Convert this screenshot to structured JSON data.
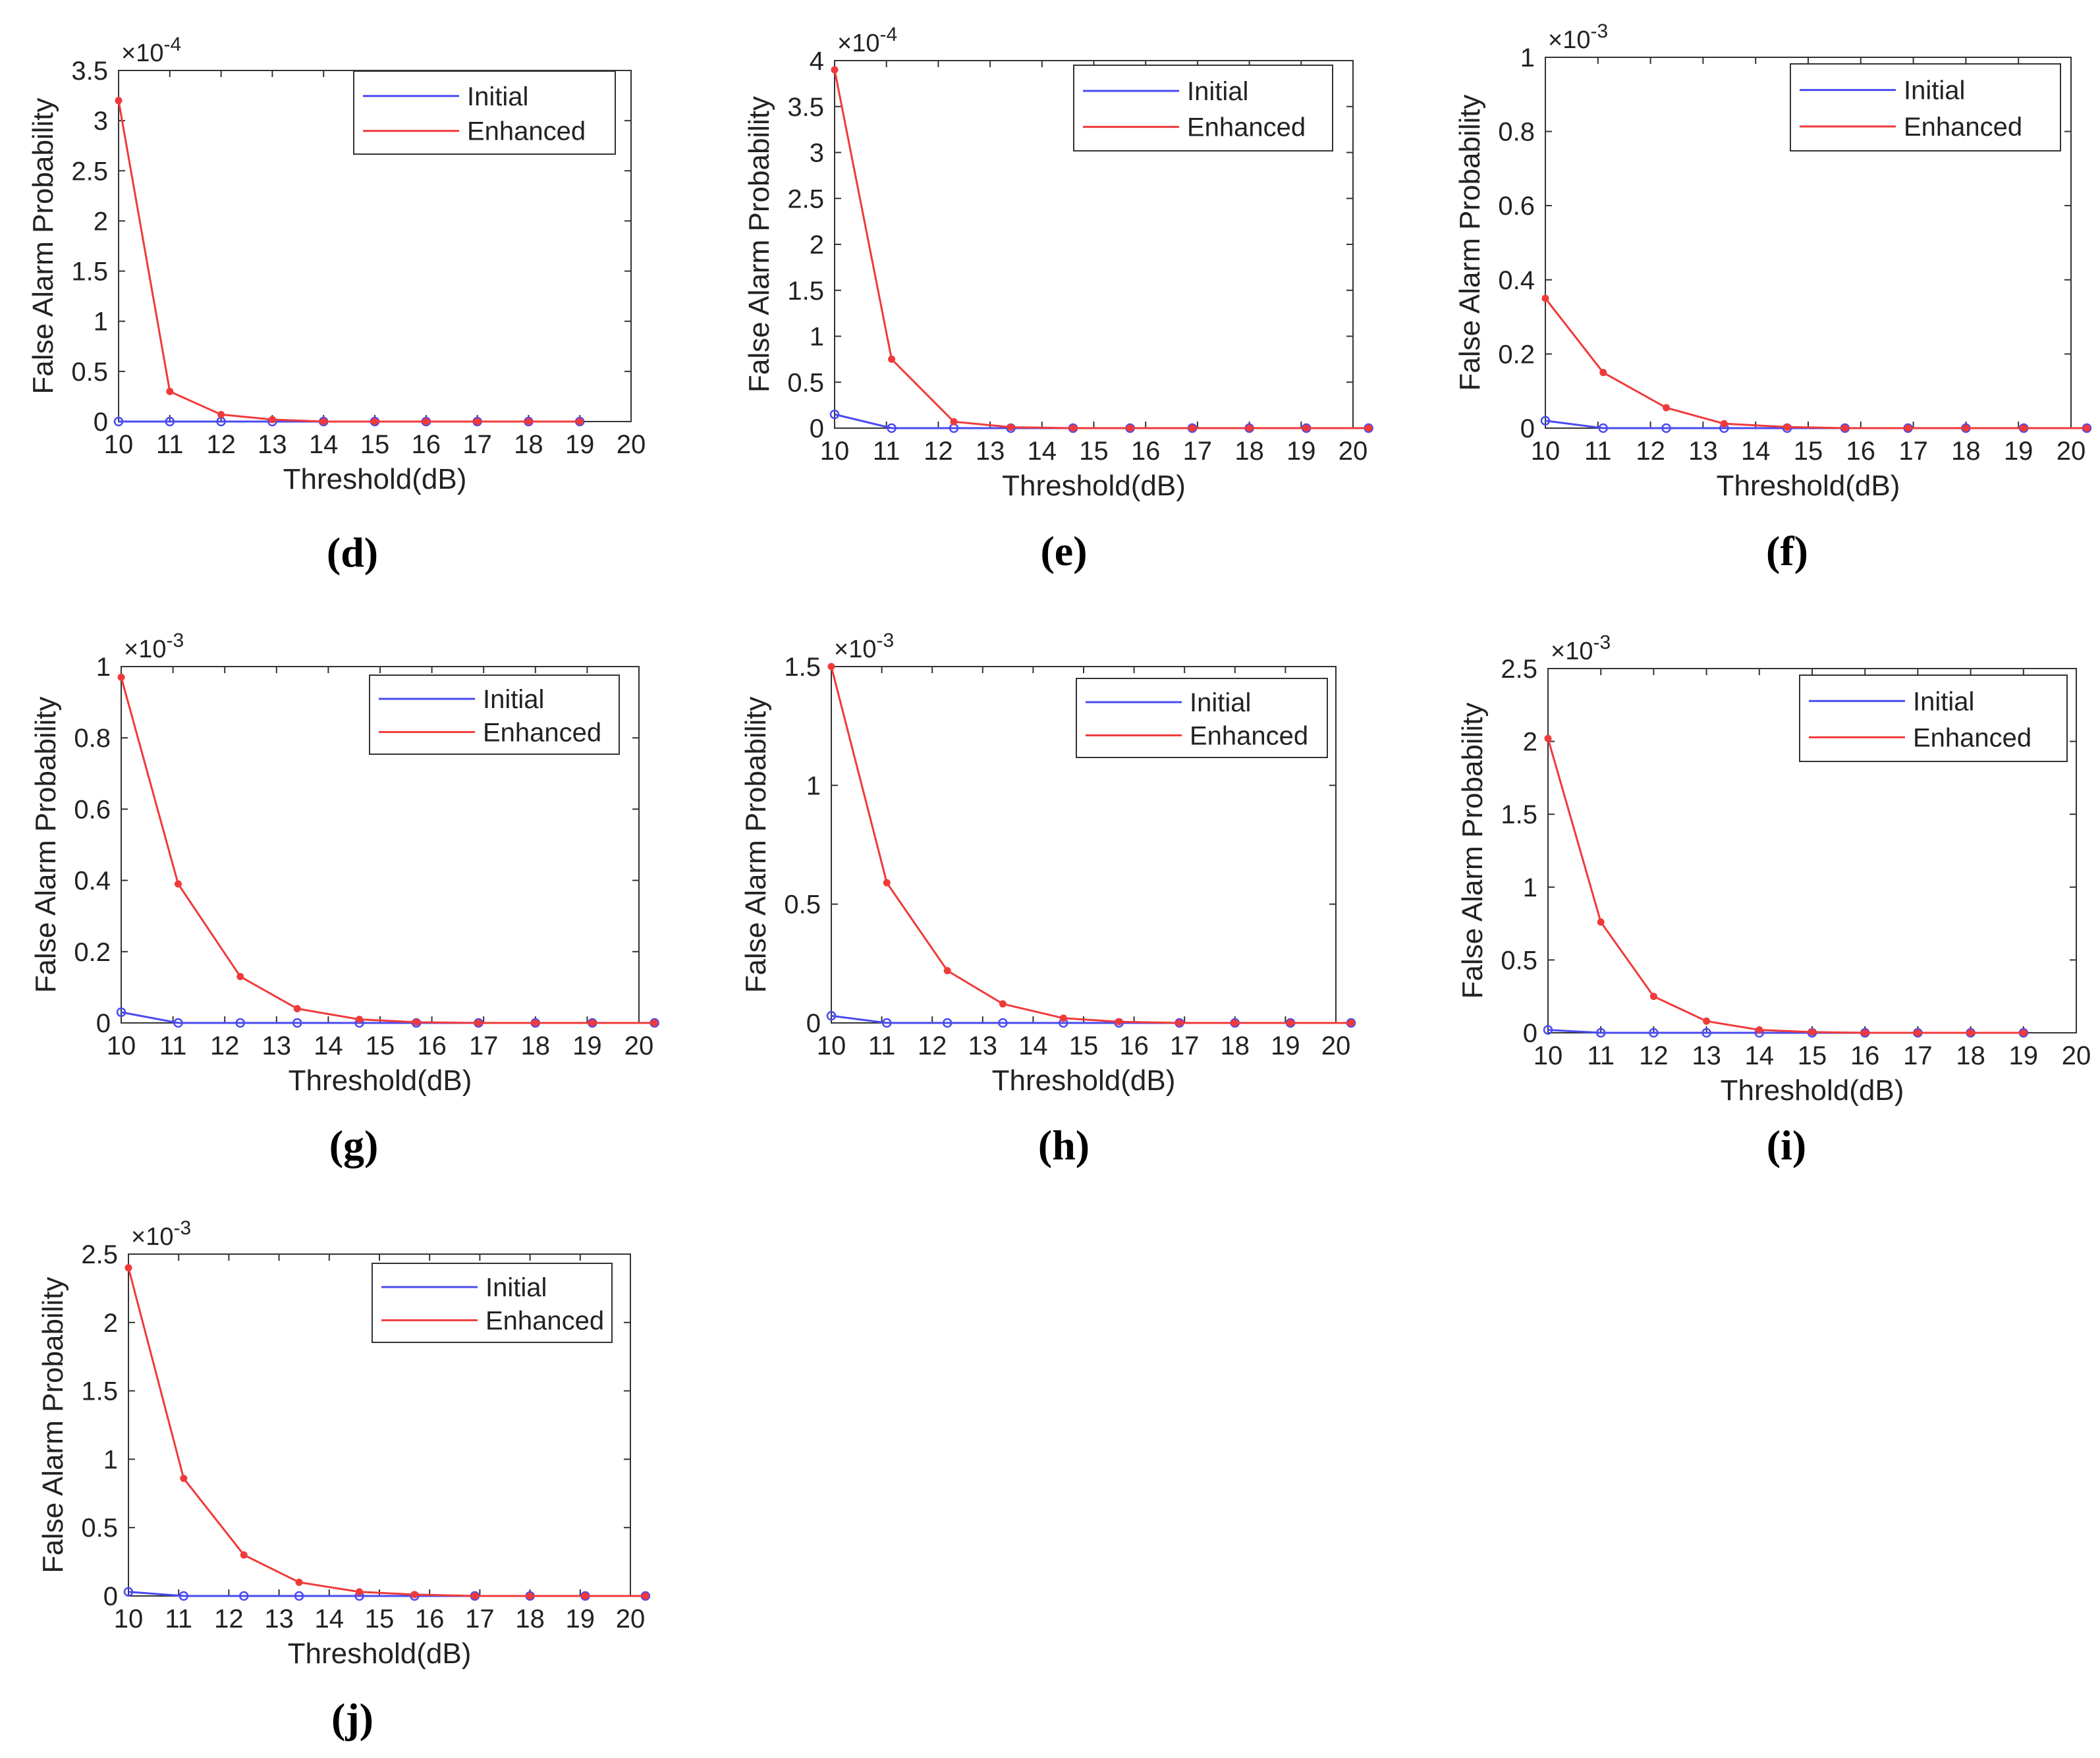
{
  "common": {
    "xlabel": "Threshold(dB)",
    "ylabel": "False Alarm Probability",
    "x_ticks": [
      10,
      11,
      12,
      13,
      14,
      15,
      16,
      17,
      18,
      19,
      20
    ],
    "legend": [
      "Initial",
      "Enhanced"
    ],
    "colors": {
      "initial": "#4a4af0",
      "enhanced": "#f03a3a"
    }
  },
  "chart_data": [
    {
      "panel": "(d)",
      "type": "line",
      "title": "",
      "xlabel": "Threshold(dB)",
      "ylabel": "False Alarm Probability",
      "exponent": "×10^-4",
      "scale_label": "×10",
      "scale_power": "-4",
      "xlim": [
        10,
        20
      ],
      "ylim": [
        0,
        3.5
      ],
      "y_ticks": [
        "0",
        "0.5",
        "1",
        "1.5",
        "2",
        "2.5",
        "3",
        "3.5"
      ],
      "legend_position": "top-right",
      "series": [
        {
          "name": "Initial",
          "x": [
            10,
            11,
            12,
            13,
            14,
            15,
            16,
            17,
            18,
            19
          ],
          "y": [
            0,
            0,
            0,
            0,
            0,
            0,
            0,
            0,
            0,
            0
          ]
        },
        {
          "name": "Enhanced",
          "x": [
            10,
            11,
            12,
            13,
            14,
            15,
            16,
            17,
            18,
            19
          ],
          "y": [
            3.2,
            0.3,
            0.07,
            0.02,
            0,
            0,
            0,
            0,
            0,
            0
          ]
        }
      ]
    },
    {
      "panel": "(e)",
      "type": "line",
      "title": "",
      "xlabel": "Threshold(dB)",
      "ylabel": "False Alarm Probability",
      "scale_label": "×10",
      "scale_power": "-4",
      "xlim": [
        10,
        20
      ],
      "ylim": [
        0,
        4
      ],
      "y_ticks": [
        "0",
        "0.5",
        "1",
        "1.5",
        "2",
        "2.5",
        "3",
        "3.5",
        "4"
      ],
      "legend_position": "top-right",
      "series": [
        {
          "name": "Initial",
          "x": [
            10,
            11.1,
            12.3,
            13.4,
            14.6,
            15.7,
            16.9,
            18,
            19.1,
            20.3
          ],
          "y": [
            0.15,
            0,
            0,
            0,
            0,
            0,
            0,
            0,
            0,
            0
          ]
        },
        {
          "name": "Enhanced",
          "x": [
            10,
            11.1,
            12.3,
            13.4,
            14.6,
            15.7,
            16.9,
            18,
            19.1,
            20.3
          ],
          "y": [
            3.9,
            0.75,
            0.07,
            0.01,
            0,
            0,
            0,
            0,
            0,
            0
          ]
        }
      ]
    },
    {
      "panel": "(f)",
      "type": "line",
      "title": "",
      "xlabel": "Threshold(dB)",
      "ylabel": "False Alarm Probability",
      "scale_label": "×10",
      "scale_power": "-3",
      "xlim": [
        10,
        20
      ],
      "ylim": [
        0,
        1
      ],
      "y_ticks": [
        "0",
        "0.2",
        "0.4",
        "0.6",
        "0.8",
        "1"
      ],
      "legend_position": "top-right",
      "series": [
        {
          "name": "Initial",
          "x": [
            10,
            11.1,
            12.3,
            13.4,
            14.6,
            15.7,
            16.9,
            18,
            19.1,
            20.3
          ],
          "y": [
            0.02,
            0,
            0,
            0,
            0,
            0,
            0,
            0,
            0,
            0
          ]
        },
        {
          "name": "Enhanced",
          "x": [
            10,
            11.1,
            12.3,
            13.4,
            14.6,
            15.7,
            16.9,
            18,
            19.1,
            20.3
          ],
          "y": [
            0.35,
            0.15,
            0.055,
            0.012,
            0.003,
            0,
            0,
            0,
            0,
            0
          ]
        }
      ]
    },
    {
      "panel": "(g)",
      "type": "line",
      "title": "",
      "xlabel": "Threshold(dB)",
      "ylabel": "False Alarm Probability",
      "scale_label": "×10",
      "scale_power": "-3",
      "xlim": [
        10,
        20
      ],
      "ylim": [
        0,
        1
      ],
      "y_ticks": [
        "0",
        "0.2",
        "0.4",
        "0.6",
        "0.8",
        "1"
      ],
      "legend_position": "top-right",
      "series": [
        {
          "name": "Initial",
          "x": [
            10,
            11.1,
            12.3,
            13.4,
            14.6,
            15.7,
            16.9,
            18,
            19.1,
            20.3
          ],
          "y": [
            0.03,
            0,
            0,
            0,
            0,
            0,
            0,
            0,
            0,
            0
          ]
        },
        {
          "name": "Enhanced",
          "x": [
            10,
            11.1,
            12.3,
            13.4,
            14.6,
            15.7,
            16.9,
            18,
            19.1,
            20.3
          ],
          "y": [
            0.97,
            0.39,
            0.13,
            0.04,
            0.01,
            0.002,
            0,
            0,
            0,
            0
          ]
        }
      ]
    },
    {
      "panel": "(h)",
      "type": "line",
      "title": "",
      "xlabel": "Threshold(dB)",
      "ylabel": "False Alarm Probability",
      "scale_label": "×10",
      "scale_power": "-3",
      "xlim": [
        10,
        20
      ],
      "ylim": [
        0,
        1.5
      ],
      "y_ticks": [
        "0",
        "0.5",
        "1",
        "1.5"
      ],
      "legend_position": "top-right",
      "series": [
        {
          "name": "Initial",
          "x": [
            10,
            11.1,
            12.3,
            13.4,
            14.6,
            15.7,
            16.9,
            18,
            19.1,
            20.3
          ],
          "y": [
            0.03,
            0,
            0,
            0,
            0,
            0,
            0,
            0,
            0,
            0
          ]
        },
        {
          "name": "Enhanced",
          "x": [
            10,
            11.1,
            12.3,
            13.4,
            14.6,
            15.7,
            16.9,
            18,
            19.1,
            20.3
          ],
          "y": [
            1.5,
            0.59,
            0.22,
            0.08,
            0.02,
            0.005,
            0,
            0,
            0,
            0
          ]
        }
      ]
    },
    {
      "panel": "(i)",
      "type": "line",
      "title": "",
      "xlabel": "Threshold(dB)",
      "ylabel": "False Alarm Probability",
      "scale_label": "×10",
      "scale_power": "-3",
      "xlim": [
        10,
        20
      ],
      "ylim": [
        0,
        2.5
      ],
      "y_ticks": [
        "0",
        "0.5",
        "1",
        "1.5",
        "2",
        "2.5"
      ],
      "legend_position": "top-right",
      "series": [
        {
          "name": "Initial",
          "x": [
            10,
            11,
            12,
            13,
            14,
            15,
            16,
            17,
            18,
            19
          ],
          "y": [
            0.02,
            0,
            0,
            0,
            0,
            0,
            0,
            0,
            0,
            0
          ]
        },
        {
          "name": "Enhanced",
          "x": [
            10,
            11,
            12,
            13,
            14,
            15,
            16,
            17,
            18,
            19
          ],
          "y": [
            2.02,
            0.76,
            0.25,
            0.08,
            0.02,
            0.005,
            0,
            0,
            0,
            0
          ]
        }
      ]
    },
    {
      "panel": "(j)",
      "type": "line",
      "title": "",
      "xlabel": "Threshold(dB)",
      "ylabel": "False Alarm Probability",
      "scale_label": "×10",
      "scale_power": "-3",
      "xlim": [
        10,
        20
      ],
      "ylim": [
        0,
        2.5
      ],
      "y_ticks": [
        "0",
        "0.5",
        "1",
        "1.5",
        "2",
        "2.5"
      ],
      "legend_position": "top-right",
      "series": [
        {
          "name": "Initial",
          "x": [
            10,
            11.1,
            12.3,
            13.4,
            14.6,
            15.7,
            16.9,
            18,
            19.1,
            20.3
          ],
          "y": [
            0.03,
            0,
            0,
            0,
            0,
            0,
            0,
            0,
            0,
            0
          ]
        },
        {
          "name": "Enhanced",
          "x": [
            10,
            11.1,
            12.3,
            13.4,
            14.6,
            15.7,
            16.9,
            18,
            19.1,
            20.3
          ],
          "y": [
            2.4,
            0.86,
            0.3,
            0.1,
            0.03,
            0.01,
            0,
            0,
            0,
            0
          ]
        }
      ]
    }
  ]
}
